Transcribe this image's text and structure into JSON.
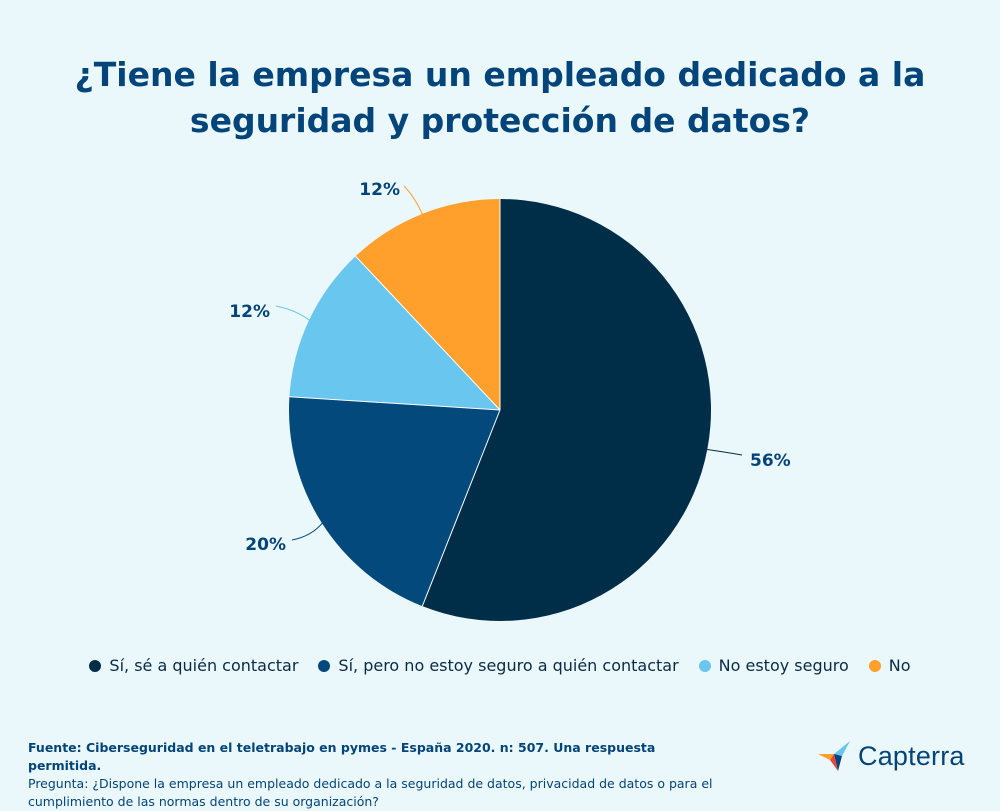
{
  "chart_data": {
    "type": "pie",
    "title": "¿Tiene la empresa un empleado dedicado a la seguridad y protección de datos?",
    "slices": [
      {
        "label": "Sí, sé a quién contactar",
        "value": 56,
        "display": "56%",
        "color": "#002d48"
      },
      {
        "label": "Sí, pero no estoy seguro a quién contactar",
        "value": 20,
        "display": "20%",
        "color": "#03497b"
      },
      {
        "label": "No estoy seguro",
        "value": 12,
        "display": "12%",
        "color": "#69c6ee"
      },
      {
        "label": "No",
        "value": 12,
        "display": "12%",
        "color": "#ffa02c"
      }
    ],
    "legend_position": "bottom",
    "start_angle": "12 o'clock",
    "direction": "clockwise"
  },
  "footer": {
    "source": "Fuente: Ciberseguridad en el teletrabajo en pymes - España 2020. n: 507. Una respuesta permitida.",
    "question": "Pregunta: ¿Dispone la empresa un empleado dedicado a la seguridad de datos, privacidad de datos o para el cumplimiento de las normas dentro de su organización?"
  },
  "brand": {
    "name": "Capterra",
    "colors": {
      "text": "#03447a",
      "blue": "#03447a",
      "orange": "#ff9d28",
      "red": "#e8463b",
      "cyan": "#68c5ed"
    }
  },
  "colors": {
    "background": "#eaf8fc",
    "title": "#03447a",
    "label": "#03447a"
  }
}
